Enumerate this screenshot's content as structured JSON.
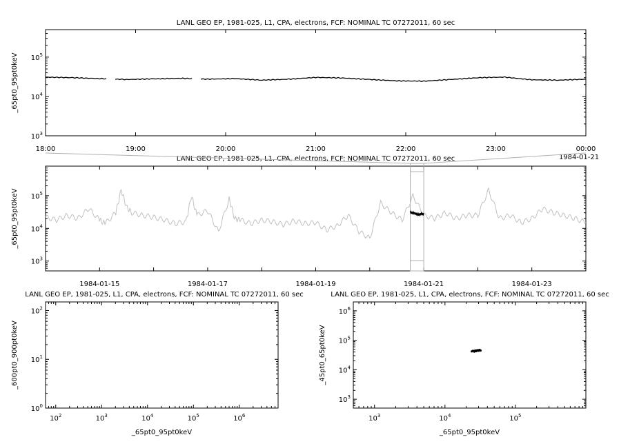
{
  "chart_data": [
    {
      "type": "line",
      "title": "LANL GEO EP, 1981-025, L1, CPA, electrons, FCF: NOMINAL TC 07272011, 60 sec",
      "ylabel": "_65pt0_95pt0keV",
      "yscale": "log",
      "ylim": [
        1000,
        500000
      ],
      "yticks": [
        "10^3",
        "10^4",
        "10^5"
      ],
      "xlim": [
        "1984-01-20 18:00",
        "1984-01-21 00:00"
      ],
      "xticks": [
        "18:00",
        "19:00",
        "20:00",
        "21:00",
        "22:00",
        "23:00",
        "00:00"
      ],
      "xtick_extra": "1984-01-21",
      "series": [
        {
          "color": "#000000",
          "x_hours": [
            0,
            0.3,
            0.6,
            0.9,
            1.2,
            1.5,
            1.8,
            2.1,
            2.4,
            2.7,
            3.0,
            3.3,
            3.6,
            3.9,
            4.2,
            4.5,
            4.8,
            5.1,
            5.4,
            5.7,
            6.0
          ],
          "y": [
            31000,
            30000,
            28500,
            27000,
            28000,
            29000,
            27500,
            28500,
            26000,
            27500,
            30500,
            29500,
            27000,
            25000,
            24500,
            27000,
            30000,
            31000,
            26500,
            26000,
            27500
          ],
          "gaps_hours": [
            [
              0.7,
              0.75
            ],
            [
              1.65,
              1.7
            ]
          ]
        }
      ]
    },
    {
      "type": "line",
      "title": "LANL GEO EP, 1981-025, L1, CPA, electrons, FCF: NOMINAL TC 07272011, 60 sec",
      "ylabel": "_65pt0_95pt0keV",
      "yscale": "log",
      "ylim": [
        500,
        800000
      ],
      "yticks": [
        "10^3",
        "10^4",
        "10^5"
      ],
      "xlim": [
        "1984-01-14",
        "1984-01-24"
      ],
      "xticks": [
        "1984-01-15",
        "1984-01-17",
        "1984-01-19",
        "1984-01-21",
        "1984-01-23"
      ],
      "highlight_range": [
        "1984-01-20 18:00",
        "1984-01-21 00:00"
      ],
      "series": [
        {
          "color": "#c0c0c0",
          "x_days": [
            0,
            0.2,
            0.4,
            0.6,
            0.8,
            1.0,
            1.1,
            1.3,
            1.4,
            1.5,
            1.6,
            1.8,
            2.0,
            2.2,
            2.4,
            2.6,
            2.7,
            2.8,
            3.0,
            3.2,
            3.4,
            3.5,
            3.6,
            3.8,
            4.0,
            4.2,
            4.4,
            4.6,
            4.8,
            5.0,
            5.2,
            5.4,
            5.6,
            5.8,
            6.0,
            6.2,
            6.4,
            6.6,
            6.8,
            7.0,
            7.2,
            7.4,
            7.6,
            7.8,
            8.0,
            8.2,
            8.4,
            8.6,
            8.8,
            9.0,
            9.2,
            9.4,
            9.6,
            9.8,
            10.0
          ],
          "y": [
            22000,
            18000,
            25000,
            20000,
            40000,
            18000,
            14000,
            30000,
            150000,
            45000,
            30000,
            25000,
            22000,
            18000,
            14000,
            16000,
            100000,
            25000,
            35000,
            8000,
            80000,
            20000,
            18000,
            14000,
            18000,
            16000,
            13000,
            17000,
            14000,
            15000,
            9000,
            12000,
            25000,
            8000,
            5000,
            60000,
            30000,
            18000,
            100000,
            25000,
            20000,
            30000,
            20000,
            25000,
            25000,
            150000,
            20000,
            25000,
            15000,
            20000,
            40000,
            30000,
            25000,
            20000,
            15000
          ]
        },
        {
          "color": "#000000",
          "x_days": [
            6.75,
            6.8,
            6.85,
            6.9,
            6.95,
            7.0
          ],
          "y": [
            31000,
            30000,
            28500,
            26000,
            28000,
            27500
          ]
        }
      ]
    },
    {
      "type": "scatter",
      "title": "LANL GEO EP, 1981-025, L1, CPA, electrons, FCF: NOMINAL TC 07272011, 60 sec",
      "xlabel": "_65pt0_95pt0keV",
      "ylabel": "_600pt0_900pt0keV",
      "xscale": "log",
      "yscale": "log",
      "xlim": [
        60,
        7000000
      ],
      "ylim": [
        1,
        150
      ],
      "xticks": [
        "10^2",
        "10^3",
        "10^4",
        "10^5",
        "10^6"
      ],
      "yticks": [
        "10^0",
        "10^1",
        "10^2"
      ],
      "series": []
    },
    {
      "type": "scatter",
      "title": "LANL GEO EP, 1981-025, L1, CPA, electrons, FCF: NOMINAL TC 07272011, 60 sec",
      "xlabel": "_65pt0_95pt0keV",
      "ylabel": "_45pt0_65pt0keV",
      "xscale": "log",
      "yscale": "log",
      "xlim": [
        500,
        1000000
      ],
      "ylim": [
        500,
        2000000
      ],
      "xticks": [
        "10^3",
        "10^4",
        "10^5"
      ],
      "yticks": [
        "10^3",
        "10^4",
        "10^5",
        "10^6"
      ],
      "series": [
        {
          "color": "#000000",
          "points": [
            [
              24000,
              42000
            ],
            [
              25000,
              44000
            ],
            [
              26000,
              41000
            ],
            [
              27000,
              45000
            ],
            [
              28000,
              43000
            ],
            [
              29000,
              46000
            ],
            [
              30000,
              44000
            ],
            [
              31000,
              47000
            ],
            [
              32000,
              45000
            ],
            [
              26500,
              43500
            ],
            [
              27500,
              42500
            ],
            [
              28500,
              45500
            ],
            [
              30500,
              46500
            ]
          ]
        }
      ]
    }
  ]
}
